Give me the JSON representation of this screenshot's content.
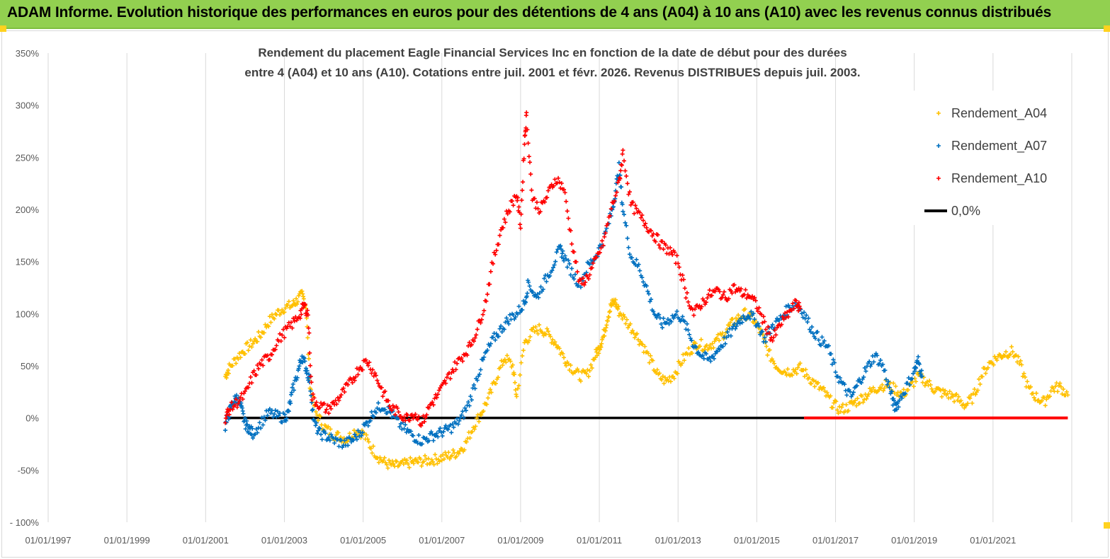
{
  "banner": {
    "title": "ADAM Informe. Evolution historique des performances en euros pour des détentions de 4 ans (A04) à 10 ans (A10) avec les revenus connus distribués",
    "color": "#92d050"
  },
  "chart_data": {
    "type": "scatter",
    "title_line1": "Rendement du placement Eagle Financial Services  Inc en fonction de la date de début pour des durées",
    "title_line2": "entre 4 (A04) et 10 ans (A10).  Cotations entre juil. 2001 et févr. 2026.  Revenus DISTRIBUES depuis juil. 2003.",
    "xlabel": "",
    "ylabel": "",
    "x_ticks": [
      "01/01/1997",
      "01/01/1999",
      "01/01/2001",
      "01/01/2003",
      "01/01/2005",
      "01/01/2007",
      "01/01/2009",
      "01/01/2011",
      "01/01/2013",
      "01/01/2015",
      "01/01/2017",
      "01/01/2019",
      "01/01/2021"
    ],
    "y_ticks": [
      "- 100%",
      "-50%",
      "0%",
      "50%",
      "100%",
      "150%",
      "200%",
      "250%",
      "300%",
      "350%"
    ],
    "xlim": [
      1997.0,
      2023.0
    ],
    "ylim": [
      -100,
      350
    ],
    "grid": "vertical",
    "legend_position": "top-right",
    "marker": "plus",
    "series": [
      {
        "name": "Rendement_A04",
        "color": "#ffc000",
        "points": [
          [
            2001.5,
            40
          ],
          [
            2001.6,
            48
          ],
          [
            2001.8,
            58
          ],
          [
            2002.0,
            66
          ],
          [
            2002.2,
            72
          ],
          [
            2002.4,
            80
          ],
          [
            2002.6,
            92
          ],
          [
            2002.8,
            100
          ],
          [
            2003.0,
            106
          ],
          [
            2003.2,
            108
          ],
          [
            2003.3,
            112
          ],
          [
            2003.45,
            118
          ],
          [
            2003.55,
            108
          ],
          [
            2003.65,
            30
          ],
          [
            2003.8,
            5
          ],
          [
            2004.0,
            -8
          ],
          [
            2004.2,
            -15
          ],
          [
            2004.4,
            -18
          ],
          [
            2004.6,
            -20
          ],
          [
            2004.8,
            -12
          ],
          [
            2005.0,
            -15
          ],
          [
            2005.2,
            -28
          ],
          [
            2005.4,
            -38
          ],
          [
            2005.6,
            -44
          ],
          [
            2005.8,
            -46
          ],
          [
            2006.0,
            -45
          ],
          [
            2006.2,
            -43
          ],
          [
            2006.4,
            -42
          ],
          [
            2006.6,
            -41
          ],
          [
            2006.8,
            -40
          ],
          [
            2007.0,
            -38
          ],
          [
            2007.2,
            -36
          ],
          [
            2007.4,
            -33
          ],
          [
            2007.6,
            -25
          ],
          [
            2007.8,
            -8
          ],
          [
            2008.0,
            5
          ],
          [
            2008.2,
            20
          ],
          [
            2008.4,
            40
          ],
          [
            2008.6,
            58
          ],
          [
            2008.8,
            50
          ],
          [
            2008.9,
            20
          ],
          [
            2009.1,
            72
          ],
          [
            2009.3,
            82
          ],
          [
            2009.5,
            86
          ],
          [
            2009.7,
            80
          ],
          [
            2009.9,
            72
          ],
          [
            2010.1,
            58
          ],
          [
            2010.3,
            48
          ],
          [
            2010.5,
            40
          ],
          [
            2010.7,
            42
          ],
          [
            2010.9,
            60
          ],
          [
            2011.0,
            68
          ],
          [
            2011.1,
            78
          ],
          [
            2011.2,
            95
          ],
          [
            2011.3,
            108
          ],
          [
            2011.4,
            112
          ],
          [
            2011.5,
            102
          ],
          [
            2011.7,
            92
          ],
          [
            2011.9,
            82
          ],
          [
            2012.1,
            70
          ],
          [
            2012.3,
            55
          ],
          [
            2012.5,
            40
          ],
          [
            2012.7,
            35
          ],
          [
            2012.9,
            42
          ],
          [
            2013.1,
            55
          ],
          [
            2013.3,
            65
          ],
          [
            2013.5,
            72
          ],
          [
            2013.7,
            68
          ],
          [
            2013.9,
            72
          ],
          [
            2014.1,
            78
          ],
          [
            2014.3,
            88
          ],
          [
            2014.5,
            95
          ],
          [
            2014.7,
            100
          ],
          [
            2014.9,
            95
          ],
          [
            2015.1,
            82
          ],
          [
            2015.3,
            62
          ],
          [
            2015.5,
            50
          ],
          [
            2015.7,
            45
          ],
          [
            2015.9,
            45
          ],
          [
            2016.1,
            48
          ],
          [
            2016.3,
            40
          ],
          [
            2016.5,
            32
          ],
          [
            2016.7,
            25
          ],
          [
            2016.9,
            15
          ],
          [
            2017.1,
            8
          ],
          [
            2017.3,
            10
          ],
          [
            2017.5,
            15
          ],
          [
            2017.7,
            20
          ],
          [
            2017.9,
            25
          ],
          [
            2018.1,
            30
          ],
          [
            2018.3,
            32
          ],
          [
            2018.5,
            28
          ],
          [
            2018.7,
            22
          ],
          [
            2018.9,
            30
          ],
          [
            2019.1,
            40
          ],
          [
            2019.3,
            35
          ],
          [
            2019.5,
            28
          ],
          [
            2019.7,
            24
          ],
          [
            2019.9,
            22
          ],
          [
            2020.1,
            18
          ],
          [
            2020.3,
            12
          ],
          [
            2020.5,
            20
          ],
          [
            2020.7,
            40
          ],
          [
            2020.9,
            52
          ],
          [
            2021.1,
            58
          ],
          [
            2021.3,
            62
          ],
          [
            2021.5,
            64
          ],
          [
            2021.7,
            50
          ],
          [
            2021.9,
            28
          ],
          [
            2022.1,
            20
          ],
          [
            2022.3,
            15
          ],
          [
            2022.5,
            28
          ],
          [
            2022.7,
            30
          ],
          [
            2022.9,
            22
          ]
        ]
      },
      {
        "name": "Rendement_A07",
        "color": "#0070c0",
        "points": [
          [
            2001.5,
            -8
          ],
          [
            2001.6,
            5
          ],
          [
            2001.7,
            15
          ],
          [
            2001.8,
            20
          ],
          [
            2001.9,
            10
          ],
          [
            2002.0,
            -5
          ],
          [
            2002.1,
            -10
          ],
          [
            2002.2,
            -15
          ],
          [
            2002.4,
            -5
          ],
          [
            2002.6,
            5
          ],
          [
            2002.8,
            2
          ],
          [
            2003.0,
            0
          ],
          [
            2003.1,
            5
          ],
          [
            2003.2,
            25
          ],
          [
            2003.35,
            45
          ],
          [
            2003.45,
            60
          ],
          [
            2003.55,
            48
          ],
          [
            2003.65,
            35
          ],
          [
            2003.75,
            -5
          ],
          [
            2003.9,
            -15
          ],
          [
            2004.1,
            -18
          ],
          [
            2004.3,
            -22
          ],
          [
            2004.5,
            -25
          ],
          [
            2004.7,
            -22
          ],
          [
            2004.9,
            -15
          ],
          [
            2005.1,
            -5
          ],
          [
            2005.3,
            8
          ],
          [
            2005.5,
            12
          ],
          [
            2005.7,
            5
          ],
          [
            2005.9,
            -5
          ],
          [
            2006.1,
            -12
          ],
          [
            2006.3,
            -18
          ],
          [
            2006.5,
            -22
          ],
          [
            2006.7,
            -18
          ],
          [
            2006.9,
            -15
          ],
          [
            2007.1,
            -12
          ],
          [
            2007.3,
            -8
          ],
          [
            2007.5,
            0
          ],
          [
            2007.7,
            15
          ],
          [
            2007.9,
            40
          ],
          [
            2008.1,
            60
          ],
          [
            2008.3,
            75
          ],
          [
            2008.5,
            85
          ],
          [
            2008.7,
            95
          ],
          [
            2008.9,
            100
          ],
          [
            2009.1,
            110
          ],
          [
            2009.2,
            130
          ],
          [
            2009.4,
            115
          ],
          [
            2009.6,
            130
          ],
          [
            2009.8,
            145
          ],
          [
            2010.0,
            162
          ],
          [
            2010.1,
            155
          ],
          [
            2010.3,
            140
          ],
          [
            2010.5,
            128
          ],
          [
            2010.7,
            145
          ],
          [
            2010.9,
            155
          ],
          [
            2011.1,
            170
          ],
          [
            2011.3,
            195
          ],
          [
            2011.4,
            215
          ],
          [
            2011.5,
            240
          ],
          [
            2011.6,
            200
          ],
          [
            2011.8,
            155
          ],
          [
            2012.0,
            145
          ],
          [
            2012.2,
            125
          ],
          [
            2012.4,
            100
          ],
          [
            2012.6,
            90
          ],
          [
            2012.8,
            95
          ],
          [
            2013.0,
            100
          ],
          [
            2013.2,
            88
          ],
          [
            2013.4,
            70
          ],
          [
            2013.6,
            60
          ],
          [
            2013.8,
            55
          ],
          [
            2014.0,
            65
          ],
          [
            2014.2,
            75
          ],
          [
            2014.4,
            85
          ],
          [
            2014.6,
            95
          ],
          [
            2014.8,
            100
          ],
          [
            2015.0,
            92
          ],
          [
            2015.2,
            75
          ],
          [
            2015.4,
            88
          ],
          [
            2015.6,
            95
          ],
          [
            2015.8,
            105
          ],
          [
            2016.0,
            110
          ],
          [
            2016.2,
            100
          ],
          [
            2016.4,
            85
          ],
          [
            2016.6,
            75
          ],
          [
            2016.8,
            68
          ],
          [
            2017.0,
            45
          ],
          [
            2017.2,
            30
          ],
          [
            2017.4,
            20
          ],
          [
            2017.6,
            35
          ],
          [
            2017.8,
            48
          ],
          [
            2018.0,
            60
          ],
          [
            2018.2,
            50
          ],
          [
            2018.4,
            25
          ],
          [
            2018.5,
            10
          ],
          [
            2018.6,
            15
          ],
          [
            2018.8,
            30
          ],
          [
            2019.0,
            45
          ],
          [
            2019.1,
            55
          ],
          [
            2019.2,
            40
          ]
        ]
      },
      {
        "name": "Rendement_A10",
        "color": "#ff0000",
        "points": [
          [
            2001.5,
            0
          ],
          [
            2001.6,
            8
          ],
          [
            2001.8,
            15
          ],
          [
            2002.0,
            22
          ],
          [
            2002.2,
            40
          ],
          [
            2002.4,
            52
          ],
          [
            2002.6,
            58
          ],
          [
            2002.8,
            72
          ],
          [
            2003.0,
            82
          ],
          [
            2003.2,
            90
          ],
          [
            2003.4,
            100
          ],
          [
            2003.5,
            108
          ],
          [
            2003.6,
            100
          ],
          [
            2003.7,
            20
          ],
          [
            2003.9,
            12
          ],
          [
            2004.1,
            8
          ],
          [
            2004.3,
            15
          ],
          [
            2004.5,
            25
          ],
          [
            2004.7,
            35
          ],
          [
            2004.9,
            48
          ],
          [
            2005.1,
            55
          ],
          [
            2005.3,
            42
          ],
          [
            2005.5,
            25
          ],
          [
            2005.7,
            10
          ],
          [
            2005.9,
            5
          ],
          [
            2006.1,
            0
          ],
          [
            2006.3,
            5
          ],
          [
            2006.5,
            -5
          ],
          [
            2006.7,
            12
          ],
          [
            2006.9,
            22
          ],
          [
            2007.1,
            35
          ],
          [
            2007.3,
            48
          ],
          [
            2007.5,
            58
          ],
          [
            2007.7,
            68
          ],
          [
            2007.9,
            85
          ],
          [
            2008.1,
            110
          ],
          [
            2008.3,
            150
          ],
          [
            2008.5,
            180
          ],
          [
            2008.7,
            200
          ],
          [
            2008.9,
            215
          ],
          [
            2009.0,
            185
          ],
          [
            2009.1,
            265
          ],
          [
            2009.15,
            290
          ],
          [
            2009.3,
            210
          ],
          [
            2009.5,
            200
          ],
          [
            2009.7,
            215
          ],
          [
            2009.9,
            230
          ],
          [
            2010.1,
            220
          ],
          [
            2010.3,
            170
          ],
          [
            2010.5,
            128
          ],
          [
            2010.7,
            135
          ],
          [
            2010.9,
            150
          ],
          [
            2011.1,
            168
          ],
          [
            2011.3,
            200
          ],
          [
            2011.5,
            225
          ],
          [
            2011.6,
            255
          ],
          [
            2011.8,
            205
          ],
          [
            2012.0,
            195
          ],
          [
            2012.2,
            185
          ],
          [
            2012.4,
            175
          ],
          [
            2012.6,
            165
          ],
          [
            2012.8,
            160
          ],
          [
            2013.0,
            150
          ],
          [
            2013.2,
            120
          ],
          [
            2013.4,
            100
          ],
          [
            2013.6,
            110
          ],
          [
            2013.8,
            118
          ],
          [
            2014.0,
            122
          ],
          [
            2014.2,
            115
          ],
          [
            2014.4,
            125
          ],
          [
            2014.6,
            120
          ],
          [
            2014.8,
            118
          ],
          [
            2015.0,
            108
          ],
          [
            2015.2,
            90
          ],
          [
            2015.4,
            75
          ],
          [
            2015.6,
            90
          ],
          [
            2015.8,
            100
          ],
          [
            2016.0,
            110
          ],
          [
            2016.1,
            105
          ]
        ]
      }
    ],
    "zero_line": {
      "name": "0,0%",
      "color": "#000000",
      "x": [
        2001.5,
        2016.2
      ],
      "y": 0
    },
    "zero_dots": {
      "color": "#ff0000",
      "x": [
        2016.2,
        2022.9
      ],
      "y": 0
    }
  }
}
